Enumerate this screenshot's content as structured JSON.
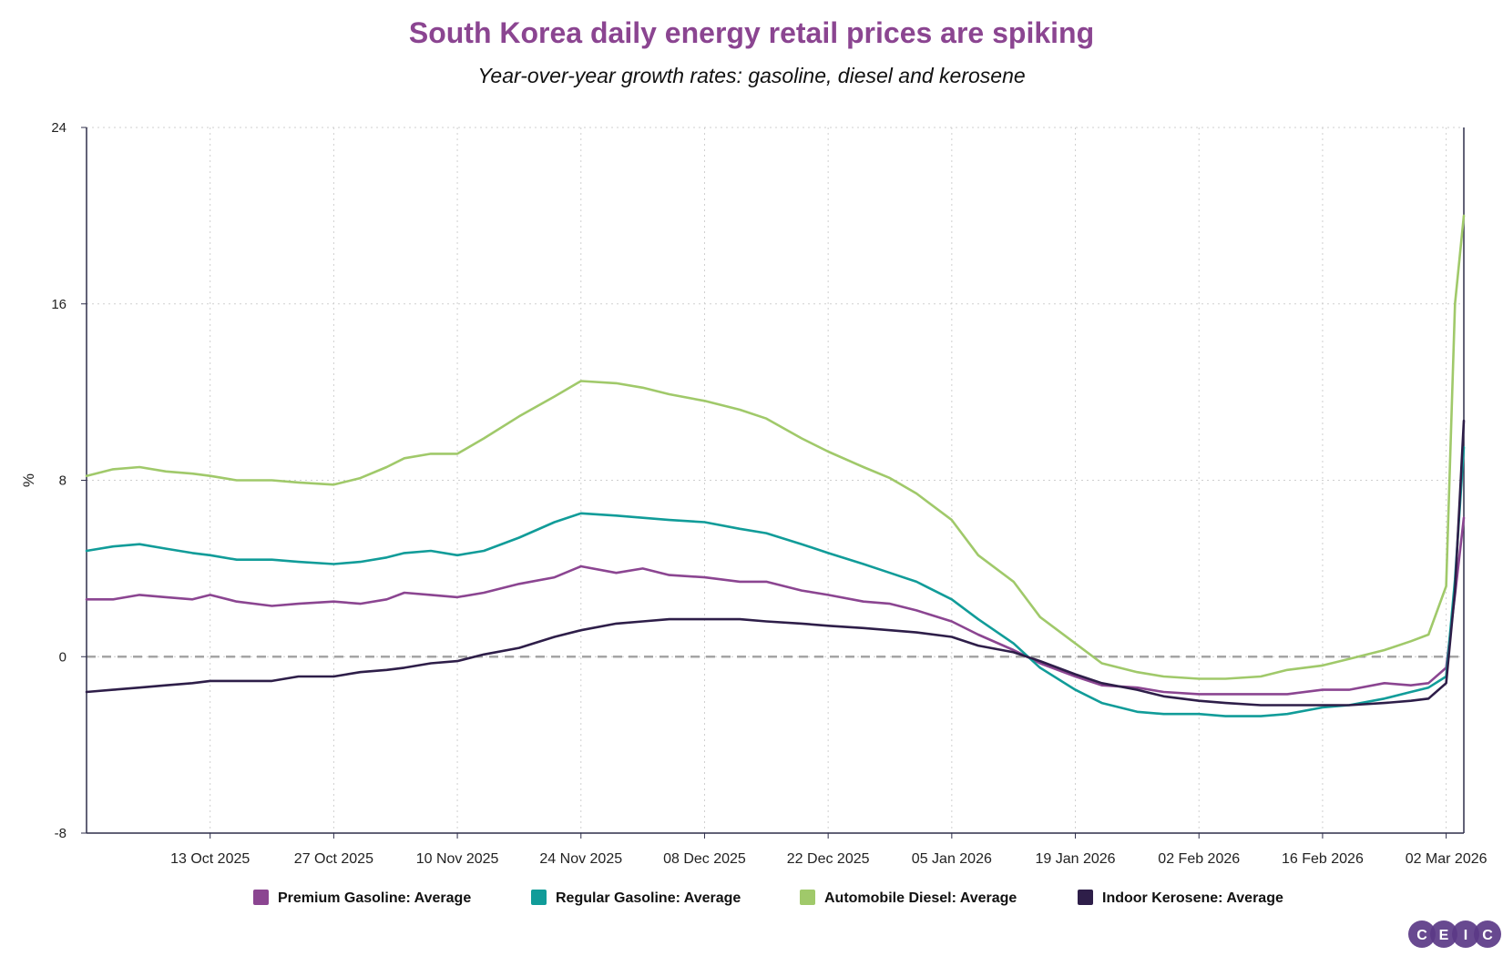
{
  "title": "South Korea daily energy retail prices are spiking",
  "subtitle": "Year-over-year growth rates: gasoline, diesel and kerosene",
  "logo": {
    "letters": [
      "C",
      "E",
      "I",
      "C"
    ],
    "color": "#5b3a87"
  },
  "chart_data": {
    "type": "line",
    "title": "South Korea daily energy retail prices are spiking",
    "subtitle": "Year-over-year growth rates: gasoline, diesel and kerosene",
    "xlabel": "",
    "ylabel": "%",
    "xlim": [
      "2025-09-29",
      "2026-03-04"
    ],
    "ylim": [
      -8,
      24
    ],
    "yticks": [
      -8,
      0,
      8,
      16,
      24
    ],
    "xticks": [
      {
        "date": "2025-10-13",
        "label": "13 Oct 2025"
      },
      {
        "date": "2025-10-27",
        "label": "27 Oct 2025"
      },
      {
        "date": "2025-11-10",
        "label": "10 Nov 2025"
      },
      {
        "date": "2025-11-24",
        "label": "24 Nov 2025"
      },
      {
        "date": "2025-12-08",
        "label": "08 Dec 2025"
      },
      {
        "date": "2025-12-22",
        "label": "22 Dec 2025"
      },
      {
        "date": "2026-01-05",
        "label": "05 Jan 2026"
      },
      {
        "date": "2026-01-19",
        "label": "19 Jan 2026"
      },
      {
        "date": "2026-02-02",
        "label": "02 Feb 2026"
      },
      {
        "date": "2026-02-16",
        "label": "16 Feb 2026"
      },
      {
        "date": "2026-03-02",
        "label": "02 Mar 2026"
      }
    ],
    "grid": true,
    "reference_line": {
      "y": 0,
      "style": "dashed"
    },
    "legend_position": "bottom",
    "series": [
      {
        "name": "Premium Gasoline: Average",
        "color": "#8b4591",
        "points": [
          [
            "2025-09-29",
            2.6
          ],
          [
            "2025-10-02",
            2.6
          ],
          [
            "2025-10-05",
            2.8
          ],
          [
            "2025-10-08",
            2.7
          ],
          [
            "2025-10-11",
            2.6
          ],
          [
            "2025-10-13",
            2.8
          ],
          [
            "2025-10-16",
            2.5
          ],
          [
            "2025-10-20",
            2.3
          ],
          [
            "2025-10-23",
            2.4
          ],
          [
            "2025-10-27",
            2.5
          ],
          [
            "2025-10-30",
            2.4
          ],
          [
            "2025-11-02",
            2.6
          ],
          [
            "2025-11-04",
            2.9
          ],
          [
            "2025-11-07",
            2.8
          ],
          [
            "2025-11-10",
            2.7
          ],
          [
            "2025-11-13",
            2.9
          ],
          [
            "2025-11-17",
            3.3
          ],
          [
            "2025-11-21",
            3.6
          ],
          [
            "2025-11-24",
            4.1
          ],
          [
            "2025-11-28",
            3.8
          ],
          [
            "2025-12-01",
            4.0
          ],
          [
            "2025-12-04",
            3.7
          ],
          [
            "2025-12-08",
            3.6
          ],
          [
            "2025-12-12",
            3.4
          ],
          [
            "2025-12-15",
            3.4
          ],
          [
            "2025-12-19",
            3.0
          ],
          [
            "2025-12-22",
            2.8
          ],
          [
            "2025-12-26",
            2.5
          ],
          [
            "2025-12-29",
            2.4
          ],
          [
            "2026-01-01",
            2.1
          ],
          [
            "2026-01-05",
            1.6
          ],
          [
            "2026-01-08",
            1.0
          ],
          [
            "2026-01-12",
            0.3
          ],
          [
            "2026-01-15",
            -0.3
          ],
          [
            "2026-01-19",
            -0.9
          ],
          [
            "2026-01-22",
            -1.3
          ],
          [
            "2026-01-26",
            -1.4
          ],
          [
            "2026-01-29",
            -1.6
          ],
          [
            "2026-02-02",
            -1.7
          ],
          [
            "2026-02-05",
            -1.7
          ],
          [
            "2026-02-09",
            -1.7
          ],
          [
            "2026-02-12",
            -1.7
          ],
          [
            "2026-02-16",
            -1.5
          ],
          [
            "2026-02-19",
            -1.5
          ],
          [
            "2026-02-23",
            -1.2
          ],
          [
            "2026-02-26",
            -1.3
          ],
          [
            "2026-02-28",
            -1.2
          ],
          [
            "2026-03-02",
            -0.5
          ],
          [
            "2026-03-03",
            2.8
          ],
          [
            "2026-03-04",
            6.3
          ]
        ]
      },
      {
        "name": "Regular Gasoline: Average",
        "color": "#119c99",
        "points": [
          [
            "2025-09-29",
            4.8
          ],
          [
            "2025-10-02",
            5.0
          ],
          [
            "2025-10-05",
            5.1
          ],
          [
            "2025-10-08",
            4.9
          ],
          [
            "2025-10-11",
            4.7
          ],
          [
            "2025-10-13",
            4.6
          ],
          [
            "2025-10-16",
            4.4
          ],
          [
            "2025-10-20",
            4.4
          ],
          [
            "2025-10-23",
            4.3
          ],
          [
            "2025-10-27",
            4.2
          ],
          [
            "2025-10-30",
            4.3
          ],
          [
            "2025-11-02",
            4.5
          ],
          [
            "2025-11-04",
            4.7
          ],
          [
            "2025-11-07",
            4.8
          ],
          [
            "2025-11-10",
            4.6
          ],
          [
            "2025-11-13",
            4.8
          ],
          [
            "2025-11-17",
            5.4
          ],
          [
            "2025-11-21",
            6.1
          ],
          [
            "2025-11-24",
            6.5
          ],
          [
            "2025-11-28",
            6.4
          ],
          [
            "2025-12-01",
            6.3
          ],
          [
            "2025-12-04",
            6.2
          ],
          [
            "2025-12-08",
            6.1
          ],
          [
            "2025-12-12",
            5.8
          ],
          [
            "2025-12-15",
            5.6
          ],
          [
            "2025-12-19",
            5.1
          ],
          [
            "2025-12-22",
            4.7
          ],
          [
            "2025-12-26",
            4.2
          ],
          [
            "2025-12-29",
            3.8
          ],
          [
            "2026-01-01",
            3.4
          ],
          [
            "2026-01-05",
            2.6
          ],
          [
            "2026-01-08",
            1.7
          ],
          [
            "2026-01-12",
            0.6
          ],
          [
            "2026-01-15",
            -0.5
          ],
          [
            "2026-01-19",
            -1.5
          ],
          [
            "2026-01-22",
            -2.1
          ],
          [
            "2026-01-26",
            -2.5
          ],
          [
            "2026-01-29",
            -2.6
          ],
          [
            "2026-02-02",
            -2.6
          ],
          [
            "2026-02-05",
            -2.7
          ],
          [
            "2026-02-09",
            -2.7
          ],
          [
            "2026-02-12",
            -2.6
          ],
          [
            "2026-02-16",
            -2.3
          ],
          [
            "2026-02-19",
            -2.2
          ],
          [
            "2026-02-23",
            -1.9
          ],
          [
            "2026-02-26",
            -1.6
          ],
          [
            "2026-02-28",
            -1.4
          ],
          [
            "2026-03-02",
            -0.9
          ],
          [
            "2026-03-03",
            3.5
          ],
          [
            "2026-03-04",
            9.5
          ]
        ]
      },
      {
        "name": "Automobile Diesel: Average",
        "color": "#a0c96a",
        "points": [
          [
            "2025-09-29",
            8.2
          ],
          [
            "2025-10-02",
            8.5
          ],
          [
            "2025-10-05",
            8.6
          ],
          [
            "2025-10-08",
            8.4
          ],
          [
            "2025-10-11",
            8.3
          ],
          [
            "2025-10-13",
            8.2
          ],
          [
            "2025-10-16",
            8.0
          ],
          [
            "2025-10-20",
            8.0
          ],
          [
            "2025-10-23",
            7.9
          ],
          [
            "2025-10-27",
            7.8
          ],
          [
            "2025-10-30",
            8.1
          ],
          [
            "2025-11-02",
            8.6
          ],
          [
            "2025-11-04",
            9.0
          ],
          [
            "2025-11-07",
            9.2
          ],
          [
            "2025-11-10",
            9.2
          ],
          [
            "2025-11-13",
            9.9
          ],
          [
            "2025-11-17",
            10.9
          ],
          [
            "2025-11-21",
            11.8
          ],
          [
            "2025-11-24",
            12.5
          ],
          [
            "2025-11-28",
            12.4
          ],
          [
            "2025-12-01",
            12.2
          ],
          [
            "2025-12-04",
            11.9
          ],
          [
            "2025-12-08",
            11.6
          ],
          [
            "2025-12-12",
            11.2
          ],
          [
            "2025-12-15",
            10.8
          ],
          [
            "2025-12-19",
            9.9
          ],
          [
            "2025-12-22",
            9.3
          ],
          [
            "2025-12-26",
            8.6
          ],
          [
            "2025-12-29",
            8.1
          ],
          [
            "2026-01-01",
            7.4
          ],
          [
            "2026-01-05",
            6.2
          ],
          [
            "2026-01-08",
            4.6
          ],
          [
            "2026-01-12",
            3.4
          ],
          [
            "2026-01-15",
            1.8
          ],
          [
            "2026-01-19",
            0.6
          ],
          [
            "2026-01-22",
            -0.3
          ],
          [
            "2026-01-26",
            -0.7
          ],
          [
            "2026-01-29",
            -0.9
          ],
          [
            "2026-02-02",
            -1.0
          ],
          [
            "2026-02-05",
            -1.0
          ],
          [
            "2026-02-09",
            -0.9
          ],
          [
            "2026-02-12",
            -0.6
          ],
          [
            "2026-02-16",
            -0.4
          ],
          [
            "2026-02-19",
            -0.1
          ],
          [
            "2026-02-23",
            0.3
          ],
          [
            "2026-02-26",
            0.7
          ],
          [
            "2026-02-28",
            1.0
          ],
          [
            "2026-03-02",
            3.2
          ],
          [
            "2026-03-03",
            16.0
          ],
          [
            "2026-03-04",
            20.0
          ]
        ]
      },
      {
        "name": "Indoor Kerosene: Average",
        "color": "#2e1e49",
        "points": [
          [
            "2025-09-29",
            -1.6
          ],
          [
            "2025-10-02",
            -1.5
          ],
          [
            "2025-10-05",
            -1.4
          ],
          [
            "2025-10-08",
            -1.3
          ],
          [
            "2025-10-11",
            -1.2
          ],
          [
            "2025-10-13",
            -1.1
          ],
          [
            "2025-10-16",
            -1.1
          ],
          [
            "2025-10-20",
            -1.1
          ],
          [
            "2025-10-23",
            -0.9
          ],
          [
            "2025-10-27",
            -0.9
          ],
          [
            "2025-10-30",
            -0.7
          ],
          [
            "2025-11-02",
            -0.6
          ],
          [
            "2025-11-04",
            -0.5
          ],
          [
            "2025-11-07",
            -0.3
          ],
          [
            "2025-11-10",
            -0.2
          ],
          [
            "2025-11-13",
            0.1
          ],
          [
            "2025-11-17",
            0.4
          ],
          [
            "2025-11-21",
            0.9
          ],
          [
            "2025-11-24",
            1.2
          ],
          [
            "2025-11-28",
            1.5
          ],
          [
            "2025-12-01",
            1.6
          ],
          [
            "2025-12-04",
            1.7
          ],
          [
            "2025-12-08",
            1.7
          ],
          [
            "2025-12-12",
            1.7
          ],
          [
            "2025-12-15",
            1.6
          ],
          [
            "2025-12-19",
            1.5
          ],
          [
            "2025-12-22",
            1.4
          ],
          [
            "2025-12-26",
            1.3
          ],
          [
            "2025-12-29",
            1.2
          ],
          [
            "2026-01-01",
            1.1
          ],
          [
            "2026-01-05",
            0.9
          ],
          [
            "2026-01-08",
            0.5
          ],
          [
            "2026-01-12",
            0.2
          ],
          [
            "2026-01-15",
            -0.2
          ],
          [
            "2026-01-19",
            -0.8
          ],
          [
            "2026-01-22",
            -1.2
          ],
          [
            "2026-01-26",
            -1.5
          ],
          [
            "2026-01-29",
            -1.8
          ],
          [
            "2026-02-02",
            -2.0
          ],
          [
            "2026-02-05",
            -2.1
          ],
          [
            "2026-02-09",
            -2.2
          ],
          [
            "2026-02-12",
            -2.2
          ],
          [
            "2026-02-16",
            -2.2
          ],
          [
            "2026-02-19",
            -2.2
          ],
          [
            "2026-02-23",
            -2.1
          ],
          [
            "2026-02-26",
            -2.0
          ],
          [
            "2026-02-28",
            -1.9
          ],
          [
            "2026-03-02",
            -1.2
          ],
          [
            "2026-03-03",
            3.0
          ],
          [
            "2026-03-04",
            10.7
          ]
        ]
      }
    ]
  }
}
